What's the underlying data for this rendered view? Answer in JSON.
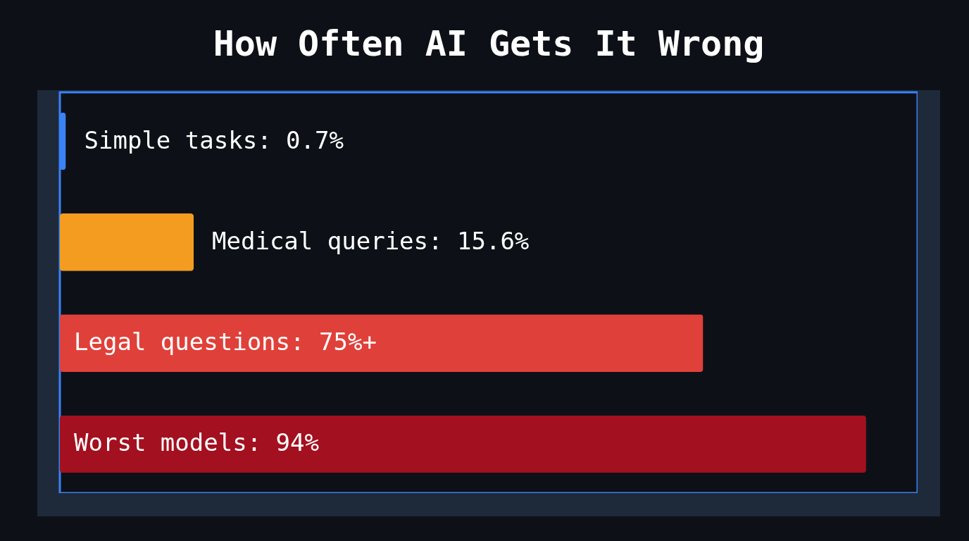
{
  "chart_data": {
    "type": "bar",
    "title": "How Often AI Gets It Wrong",
    "orientation": "horizontal",
    "categories": [
      null,
      null,
      null,
      null
    ],
    "values": [
      0.7,
      15.6,
      75,
      94
    ],
    "colors": [
      "#3b82f6",
      "#f39c1f",
      "#e0403a",
      "#a3101f"
    ],
    "value_labels": [
      "Simple tasks: 0.7%",
      "Medical queries: 15.6%",
      "Legal questions: 75%+",
      "Worst models: 94%"
    ],
    "xlim": [
      0,
      100
    ]
  }
}
